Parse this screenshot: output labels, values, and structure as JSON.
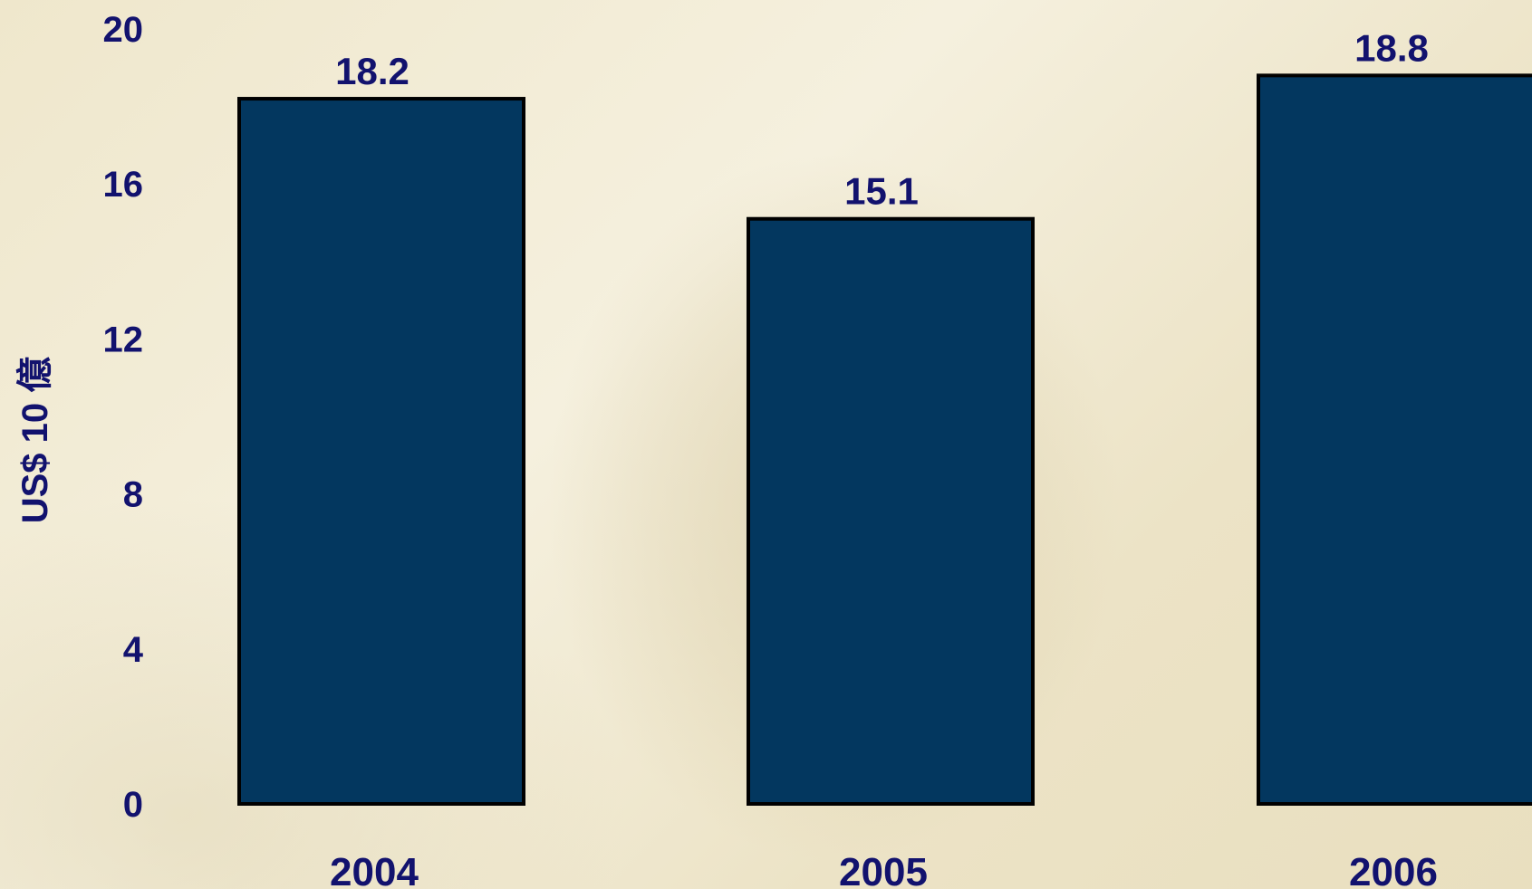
{
  "chart_data": {
    "type": "bar",
    "categories": [
      "2004",
      "2005",
      "2006"
    ],
    "values": [
      18.2,
      15.1,
      18.8
    ],
    "value_labels": [
      "18.2",
      "15.1",
      "18.8"
    ],
    "ylabel": "US$ 10 億",
    "ylim": [
      0,
      20
    ],
    "yticks": [
      "0",
      "4",
      "8",
      "12",
      "16",
      "20"
    ],
    "grid": false,
    "legend": "none",
    "bar_color": "#03375f",
    "bar_outline_color": "#000000",
    "text_color": "#12126e"
  }
}
